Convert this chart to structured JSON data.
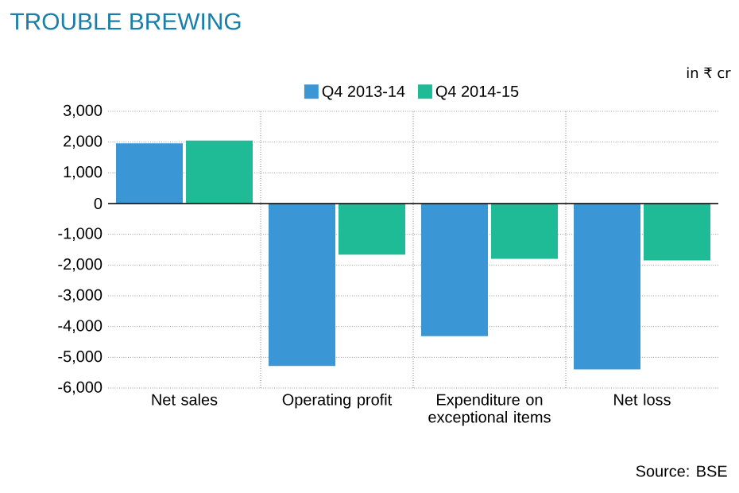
{
  "chart_data": {
    "type": "bar",
    "title": "TROUBLE BREWING",
    "categories": [
      "Net sales",
      "Operating profit",
      "Expenditure on exceptional items",
      "Net loss"
    ],
    "series": [
      {
        "name": "Q4 2013-14",
        "color": "#3a96d4",
        "values": [
          1960,
          -5280,
          -4310,
          -5390
        ]
      },
      {
        "name": "Q4 2014-15",
        "color": "#1fba96",
        "values": [
          2050,
          -1660,
          -1800,
          -1850
        ]
      }
    ],
    "ylim": [
      -6000,
      3000
    ],
    "yticks": [
      {
        "value": -6000,
        "label": "-6,000"
      },
      {
        "value": -5000,
        "label": "-5,000"
      },
      {
        "value": -4000,
        "label": "-4,000"
      },
      {
        "value": -3000,
        "label": "-3,000"
      },
      {
        "value": -2000,
        "label": "-2,000"
      },
      {
        "value": -1000,
        "label": "-1,000"
      },
      0,
      {
        "value": 1000,
        "label": "1,000"
      },
      {
        "value": 2000,
        "label": "2,000"
      },
      {
        "value": 3000,
        "label": "3,000"
      }
    ],
    "grid": true,
    "legend": "top",
    "annotations": [
      "in ₹ cr",
      "Source: BSE"
    ]
  }
}
